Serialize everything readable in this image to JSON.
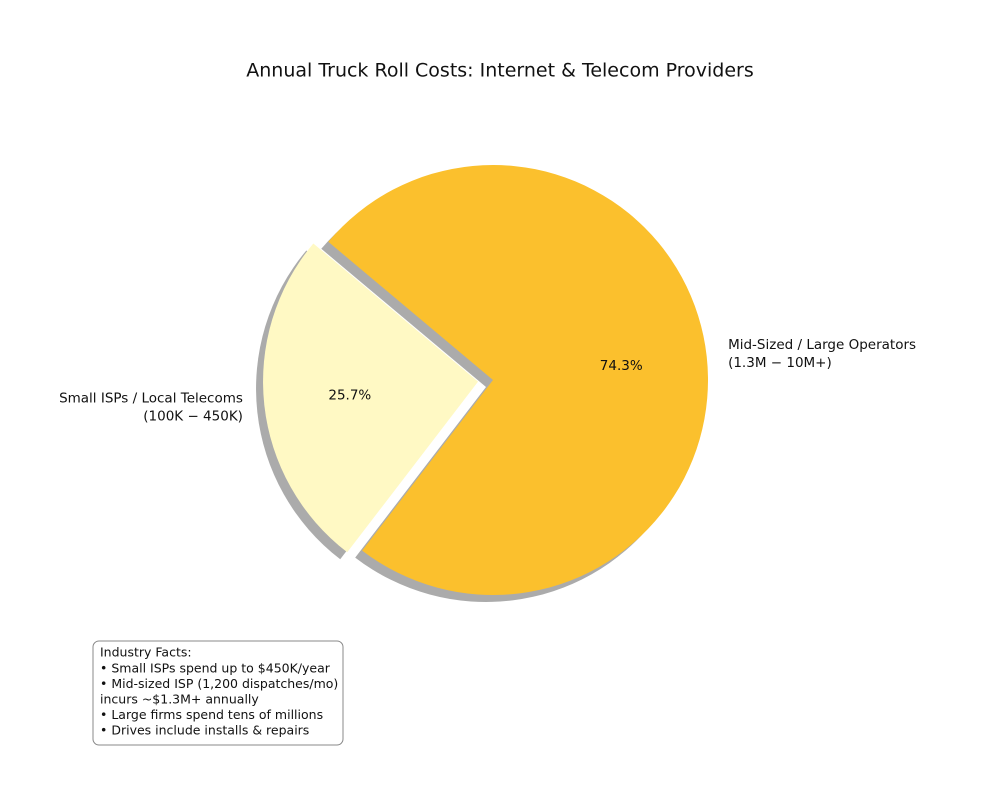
{
  "chart_data": {
    "type": "pie",
    "title": "Annual Truck Roll Costs: Internet & Telecom Providers",
    "categories": [
      [
        "Small ISPs / Local Telecoms",
        "(100K − 450K)"
      ],
      [
        "Mid-Sized / Large Operators",
        "(1.3M − 10M+)"
      ]
    ],
    "values": [
      25.7,
      74.3
    ],
    "value_labels": [
      "25.7%",
      "74.3%"
    ],
    "colors": [
      "#fff9c4",
      "#fbc02d"
    ],
    "explode": [
      0.07,
      0
    ],
    "shadow": true,
    "annotation": {
      "title": "Industry Facts:",
      "lines": [
        "• Small ISPs spend up to $450K/year",
        "• Mid-sized ISP (1,200 dispatches/mo)",
        "   incurs ~$1.3M+ annually",
        "• Large firms spend tens of millions",
        "• Drives include installs & repairs"
      ]
    }
  }
}
